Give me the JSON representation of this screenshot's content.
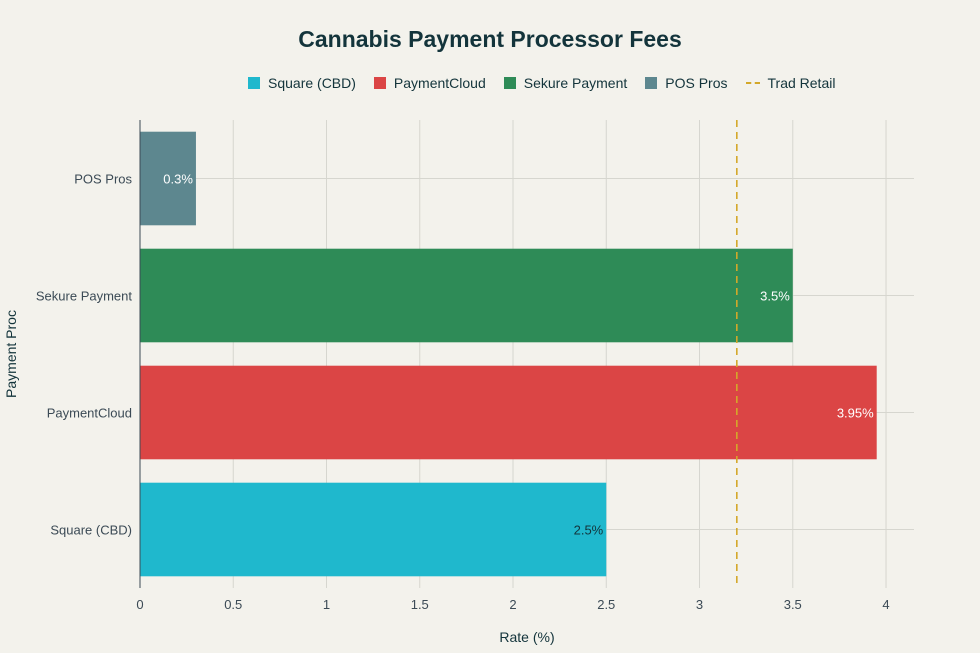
{
  "chart_data": {
    "type": "bar",
    "orientation": "horizontal",
    "title": "Cannabis Payment Processor Fees",
    "xlabel": "Rate (%)",
    "ylabel": "Payment Proc",
    "xlim": [
      0,
      4.15
    ],
    "xticks": [
      "0",
      "0.5",
      "1",
      "1.5",
      "2",
      "2.5",
      "3",
      "3.5",
      "4"
    ],
    "grid": true,
    "legend_position": "top",
    "categories": [
      "Square (CBD)",
      "PaymentCloud",
      "Sekure Payment",
      "POS Pros"
    ],
    "values": [
      2.5,
      3.95,
      3.5,
      0.3
    ],
    "data_labels": [
      "2.5%",
      "3.95%",
      "3.5%",
      "0.3%"
    ],
    "colors": [
      "#1fb8cd",
      "#db4545",
      "#2e8b57",
      "#5d878f"
    ],
    "reference_line": {
      "name": "Trad Retail",
      "value": 3.2,
      "color": "#d3a82a",
      "style": "dashed"
    },
    "legend": [
      {
        "label": "Square (CBD)",
        "color": "#1fb8cd"
      },
      {
        "label": "PaymentCloud",
        "color": "#db4545"
      },
      {
        "label": "Sekure Payment",
        "color": "#2e8b57"
      },
      {
        "label": "POS Pros",
        "color": "#5d878f"
      }
    ]
  }
}
